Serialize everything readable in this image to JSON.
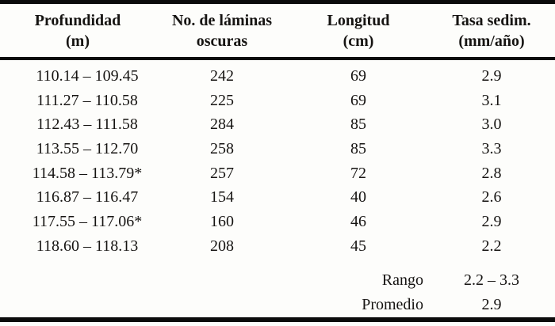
{
  "table": {
    "headers": [
      {
        "line1": "Profundidad",
        "line2": "(m)"
      },
      {
        "line1": "No. de láminas",
        "line2": "oscuras"
      },
      {
        "line1": "Longitud",
        "line2": "(cm)"
      },
      {
        "line1": "Tasa sedim.",
        "line2": "(mm/año)"
      }
    ],
    "column_keys": [
      "profundidad",
      "laminas-oscuras",
      "longitud",
      "tasa-sedim"
    ],
    "rows": [
      [
        "110.14 – 109.45",
        "242",
        "69",
        "2.9"
      ],
      [
        "111.27 – 110.58",
        "225",
        "69",
        "3.1"
      ],
      [
        "112.43 – 111.58",
        "284",
        "85",
        "3.0"
      ],
      [
        "113.55 – 112.70",
        "258",
        "85",
        "3.3"
      ],
      [
        "114.58 – 113.79*",
        "257",
        "72",
        "2.8"
      ],
      [
        "116.87 – 116.47",
        "154",
        "40",
        "2.6"
      ],
      [
        "117.55 – 117.06*",
        "160",
        "46",
        "2.9"
      ],
      [
        "118.60 – 118.13",
        "208",
        "45",
        "2.2"
      ]
    ],
    "summary": [
      {
        "label": "Rango",
        "value": "2.2 – 3.3"
      },
      {
        "label": "Promedio",
        "value": "2.9"
      }
    ]
  },
  "colors": {
    "background": "#fdfdfb",
    "text": "#161412",
    "rule": "#0b0b0b"
  }
}
